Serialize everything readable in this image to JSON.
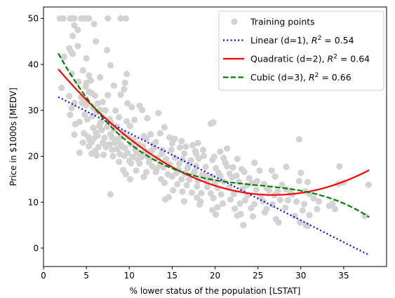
{
  "chart_data": {
    "type": "scatter",
    "title": "",
    "xlabel": "% lower status of the population [LSTAT]",
    "ylabel": "Price in $1000s [MEDV]",
    "xlim": [
      0,
      40
    ],
    "ylim": [
      -4,
      52.5
    ],
    "xticks": [
      0,
      5,
      10,
      15,
      20,
      25,
      30,
      35
    ],
    "yticks": [
      0,
      10,
      20,
      30,
      40,
      50
    ],
    "grid": false,
    "legend_position": "top-right",
    "scatter": {
      "name": "Training points",
      "color": "#d3d3d3",
      "points": [
        [
          1.9,
          50
        ],
        [
          2.3,
          50
        ],
        [
          3.1,
          50
        ],
        [
          3.3,
          50
        ],
        [
          3.6,
          50
        ],
        [
          4.4,
          50
        ],
        [
          4.7,
          50
        ],
        [
          5.1,
          50
        ],
        [
          5.3,
          50
        ],
        [
          9.0,
          50
        ],
        [
          9.6,
          50
        ],
        [
          7.5,
          50
        ],
        [
          5.9,
          48.8
        ],
        [
          3.6,
          48.5
        ],
        [
          4.0,
          47.5
        ],
        [
          3.4,
          46.2
        ],
        [
          6.1,
          45.0
        ],
        [
          4.0,
          44.0
        ],
        [
          3.0,
          43.5
        ],
        [
          3.2,
          42.8
        ],
        [
          3.4,
          42.3
        ],
        [
          7.4,
          43.1
        ],
        [
          2.4,
          41.7
        ],
        [
          5.0,
          41.3
        ],
        [
          4.6,
          38.7
        ],
        [
          7.8,
          39.8
        ],
        [
          3.3,
          38.0
        ],
        [
          5.3,
          37.6
        ],
        [
          6.6,
          37.2
        ],
        [
          5.5,
          36.5
        ],
        [
          2.1,
          34.9
        ],
        [
          4.1,
          36.2
        ],
        [
          5.0,
          36.0
        ],
        [
          9.7,
          37.9
        ],
        [
          4.9,
          35.2
        ],
        [
          8.2,
          35.4
        ],
        [
          9.0,
          33.4
        ],
        [
          9.4,
          34.6
        ],
        [
          5.3,
          34.0
        ],
        [
          5.6,
          33.8
        ],
        [
          9.5,
          36.0
        ],
        [
          6.0,
          33.2
        ],
        [
          3.0,
          33.1
        ],
        [
          4.4,
          32.9
        ],
        [
          7.5,
          33.3
        ],
        [
          3.6,
          31.6
        ],
        [
          4.5,
          31.6
        ],
        [
          9.8,
          31.5
        ],
        [
          5.0,
          31.1
        ],
        [
          6.3,
          31.5
        ],
        [
          3.3,
          30.5
        ],
        [
          6.6,
          30.1
        ],
        [
          10.3,
          30.7
        ],
        [
          11.5,
          30.1
        ],
        [
          7.2,
          30.0
        ],
        [
          11.2,
          31.0
        ],
        [
          3.1,
          29.0
        ],
        [
          4.8,
          29.1
        ],
        [
          6.2,
          29.6
        ],
        [
          5.7,
          28.7
        ],
        [
          8.8,
          28.5
        ],
        [
          7.7,
          28.1
        ],
        [
          5.1,
          28.0
        ],
        [
          6.7,
          27.5
        ],
        [
          4.2,
          27.5
        ],
        [
          9.7,
          27.6
        ],
        [
          3.7,
          27.0
        ],
        [
          13.4,
          29.4
        ],
        [
          12.1,
          28.3
        ],
        [
          6.5,
          26.6
        ],
        [
          7.4,
          26.4
        ],
        [
          5.8,
          26.2
        ],
        [
          8.2,
          25.9
        ],
        [
          10.1,
          26.6
        ],
        [
          14.1,
          26.3
        ],
        [
          6.1,
          25.2
        ],
        [
          4.7,
          25.0
        ],
        [
          9.3,
          25.0
        ],
        [
          7.8,
          24.8
        ],
        [
          11.7,
          24.4
        ],
        [
          14.7,
          24.1
        ],
        [
          19.8,
          27.4
        ],
        [
          19.5,
          27.1
        ],
        [
          3.6,
          24.7
        ],
        [
          5.2,
          24.3
        ],
        [
          6.3,
          24.5
        ],
        [
          7.1,
          24.0
        ],
        [
          8.0,
          24.1
        ],
        [
          8.9,
          24.0
        ],
        [
          9.9,
          24.2
        ],
        [
          10.5,
          23.6
        ],
        [
          12.0,
          23.9
        ],
        [
          16.1,
          23.3
        ],
        [
          13.1,
          23.1
        ],
        [
          4.6,
          23.0
        ],
        [
          5.6,
          23.1
        ],
        [
          6.9,
          23.0
        ],
        [
          7.7,
          22.6
        ],
        [
          8.3,
          22.9
        ],
        [
          9.0,
          22.6
        ],
        [
          10.2,
          22.7
        ],
        [
          11.1,
          22.6
        ],
        [
          12.8,
          22.5
        ],
        [
          15.0,
          22.8
        ],
        [
          18.0,
          22.9
        ],
        [
          15.9,
          21.9
        ],
        [
          17.4,
          22.4
        ],
        [
          21.4,
          21.7
        ],
        [
          29.8,
          23.7
        ],
        [
          5.3,
          22.2
        ],
        [
          6.4,
          22.0
        ],
        [
          7.3,
          22.0
        ],
        [
          8.6,
          21.6
        ],
        [
          9.5,
          21.8
        ],
        [
          10.7,
          21.5
        ],
        [
          11.9,
          21.1
        ],
        [
          12.6,
          21.2
        ],
        [
          13.8,
          20.6
        ],
        [
          14.9,
          21.4
        ],
        [
          16.4,
          20.6
        ],
        [
          17.8,
          20.5
        ],
        [
          18.6,
          21.4
        ],
        [
          20.6,
          21.0
        ],
        [
          4.2,
          20.8
        ],
        [
          5.6,
          20.6
        ],
        [
          6.2,
          20.2
        ],
        [
          7.0,
          20.3
        ],
        [
          8.1,
          20.0
        ],
        [
          9.4,
          20.1
        ],
        [
          10.4,
          19.9
        ],
        [
          11.4,
          19.8
        ],
        [
          12.4,
          19.5
        ],
        [
          13.3,
          19.6
        ],
        [
          14.3,
          19.4
        ],
        [
          15.3,
          19.7
        ],
        [
          16.2,
          19.3
        ],
        [
          17.2,
          19.1
        ],
        [
          18.1,
          19.5
        ],
        [
          19.7,
          19.2
        ],
        [
          21.0,
          19.6
        ],
        [
          22.6,
          19.4
        ],
        [
          24.6,
          18.6
        ],
        [
          8.8,
          18.8
        ],
        [
          10.2,
          18.5
        ],
        [
          11.2,
          18.4
        ],
        [
          12.3,
          18.7
        ],
        [
          13.6,
          18.2
        ],
        [
          14.7,
          18.3
        ],
        [
          15.8,
          18.4
        ],
        [
          16.9,
          18.1
        ],
        [
          17.8,
          17.9
        ],
        [
          18.9,
          17.7
        ],
        [
          20.1,
          17.4
        ],
        [
          21.4,
          17.8
        ],
        [
          23.1,
          17.2
        ],
        [
          25.2,
          16.9
        ],
        [
          28.3,
          17.7
        ],
        [
          30.0,
          16.4
        ],
        [
          34.5,
          17.8
        ],
        [
          26.6,
          16.9
        ],
        [
          9.3,
          17.0
        ],
        [
          10.8,
          16.9
        ],
        [
          12.0,
          16.6
        ],
        [
          13.1,
          16.6
        ],
        [
          14.5,
          16.1
        ],
        [
          15.5,
          16.4
        ],
        [
          16.5,
          16.2
        ],
        [
          17.5,
          16.2
        ],
        [
          18.5,
          16.0
        ],
        [
          19.6,
          15.6
        ],
        [
          20.6,
          15.7
        ],
        [
          22.0,
          15.4
        ],
        [
          24.0,
          15.2
        ],
        [
          27.0,
          15.6
        ],
        [
          9.6,
          16.1
        ],
        [
          11.7,
          15.5
        ],
        [
          13.7,
          15.0
        ],
        [
          15.0,
          15.6
        ],
        [
          16.1,
          15.0
        ],
        [
          17.0,
          14.9
        ],
        [
          18.0,
          14.7
        ],
        [
          19.0,
          14.6
        ],
        [
          20.0,
          14.3
        ],
        [
          21.0,
          14.5
        ],
        [
          22.8,
          14.4
        ],
        [
          24.3,
          14.1
        ],
        [
          25.7,
          14.0
        ],
        [
          27.8,
          13.8
        ],
        [
          29.8,
          14.6
        ],
        [
          30.8,
          14.4
        ],
        [
          34.4,
          14.0
        ],
        [
          35.0,
          14.3
        ],
        [
          37.9,
          13.8
        ],
        [
          14.1,
          14.2
        ],
        [
          15.6,
          13.9
        ],
        [
          16.7,
          13.7
        ],
        [
          17.9,
          13.4
        ],
        [
          19.1,
          13.3
        ],
        [
          20.3,
          13.1
        ],
        [
          21.6,
          13.2
        ],
        [
          23.2,
          12.9
        ],
        [
          24.8,
          12.7
        ],
        [
          26.3,
          12.6
        ],
        [
          28.3,
          12.8
        ],
        [
          30.5,
          12.4
        ],
        [
          10.1,
          15.0
        ],
        [
          15.1,
          12.6
        ],
        [
          16.2,
          12.3
        ],
        [
          17.3,
          12.1
        ],
        [
          18.4,
          12.0
        ],
        [
          19.5,
          11.9
        ],
        [
          20.7,
          11.7
        ],
        [
          22.2,
          11.8
        ],
        [
          23.8,
          11.5
        ],
        [
          25.3,
          11.2
        ],
        [
          26.9,
          11.5
        ],
        [
          29.0,
          11.7
        ],
        [
          31.0,
          11.8
        ],
        [
          14.6,
          11.1
        ],
        [
          17.9,
          11.0
        ],
        [
          19.8,
          10.9
        ],
        [
          21.8,
          10.6
        ],
        [
          23.5,
          10.4
        ],
        [
          25.6,
          10.2
        ],
        [
          27.6,
          10.5
        ],
        [
          29.5,
          10.1
        ],
        [
          32.1,
          10.2
        ],
        [
          14.2,
          10.6
        ],
        [
          16.4,
          10.2
        ],
        [
          18.3,
          10.1
        ],
        [
          20.9,
          9.7
        ],
        [
          22.9,
          9.7
        ],
        [
          24.6,
          9.6
        ],
        [
          26.7,
          9.5
        ],
        [
          28.5,
          10.4
        ],
        [
          30.4,
          9.6
        ],
        [
          33.3,
          9.2
        ],
        [
          7.8,
          11.7
        ],
        [
          18.2,
          9.5
        ],
        [
          20.3,
          8.9
        ],
        [
          22.3,
          8.6
        ],
        [
          24.2,
          8.7
        ],
        [
          26.0,
          8.5
        ],
        [
          28.2,
          8.8
        ],
        [
          30.2,
          8.2
        ],
        [
          31.9,
          8.5
        ],
        [
          34.0,
          8.5
        ],
        [
          19.7,
          8.3
        ],
        [
          23.0,
          7.4
        ],
        [
          25.8,
          7.8
        ],
        [
          29.3,
          7.0
        ],
        [
          31.0,
          7.2
        ],
        [
          37.5,
          7.0
        ],
        [
          20.1,
          7.3
        ],
        [
          22.6,
          7.1
        ],
        [
          24.4,
          6.9
        ],
        [
          27.1,
          6.3
        ],
        [
          29.9,
          5.6
        ],
        [
          30.6,
          5.0
        ],
        [
          23.3,
          5.0
        ],
        [
          27.4,
          5.6
        ],
        [
          30.8,
          4.8
        ],
        [
          10.5,
          23.1
        ],
        [
          11.6,
          22.2
        ],
        [
          12.9,
          21.8
        ],
        [
          13.9,
          21.3
        ],
        [
          8.5,
          23.6
        ],
        [
          9.2,
          22.1
        ],
        [
          10.9,
          20.8
        ],
        [
          6.0,
          21.1
        ],
        [
          5.4,
          23.5
        ],
        [
          6.8,
          25.7
        ],
        [
          8.6,
          26.5
        ],
        [
          7.9,
          27.3
        ],
        [
          10.0,
          19.0
        ],
        [
          11.0,
          19.3
        ],
        [
          12.7,
          17.8
        ],
        [
          13.2,
          17.3
        ],
        [
          14.0,
          17.6
        ],
        [
          15.7,
          17.1
        ],
        [
          16.8,
          17.4
        ],
        [
          17.6,
          16.7
        ],
        [
          18.8,
          15.8
        ],
        [
          19.3,
          15.2
        ],
        [
          20.4,
          16.4
        ],
        [
          21.7,
          16.2
        ],
        [
          22.5,
          15.8
        ],
        [
          23.7,
          13.7
        ],
        [
          24.9,
          14.6
        ],
        [
          26.0,
          13.1
        ],
        [
          27.3,
          12.3
        ],
        [
          28.8,
          12.0
        ],
        [
          31.5,
          10.8
        ],
        [
          33.7,
          9.7
        ],
        [
          5.9,
          23.9
        ],
        [
          7.2,
          22.5
        ],
        [
          8.0,
          21.4
        ],
        [
          8.9,
          20.5
        ],
        [
          9.8,
          20.7
        ],
        [
          11.3,
          20.3
        ],
        [
          12.1,
          20.0
        ],
        [
          6.6,
          27.0
        ],
        [
          5.8,
          30.5
        ],
        [
          4.9,
          32.4
        ],
        [
          6.9,
          31.8
        ],
        [
          8.4,
          29.9
        ],
        [
          10.6,
          27.9
        ],
        [
          12.5,
          24.8
        ],
        [
          13.6,
          25.0
        ],
        [
          15.3,
          23.8
        ],
        [
          16.6,
          22.1
        ],
        [
          17.7,
          21.1
        ],
        [
          18.7,
          20.1
        ],
        [
          19.9,
          19.9
        ],
        [
          21.2,
          18.6
        ],
        [
          22.1,
          17.6
        ],
        [
          23.4,
          16.6
        ]
      ]
    },
    "series": [
      {
        "name": "Linear (d=1), R^2 = 0.54",
        "degree": 1,
        "color": "#0000ff",
        "style": "dotted",
        "x_range": [
          1.73,
          37.97
        ],
        "coefficients": [
          34.55,
          -0.95
        ]
      },
      {
        "name": "Quadratic (d=2), R^2 = 0.64",
        "degree": 2,
        "color": "#ff0000",
        "style": "solid",
        "x_range": [
          1.73,
          37.97
        ],
        "coefficients": [
          42.86,
          -2.333,
          0.0435
        ]
      },
      {
        "name": "Cubic (d=3), R^2 = 0.66",
        "degree": 3,
        "color": "#008000",
        "style": "dashed",
        "x_range": [
          1.73,
          37.97
        ],
        "coefficients": [
          48.65,
          -3.866,
          0.1487,
          -0.002
        ]
      }
    ],
    "legend": [
      {
        "label": "Training points",
        "kind": "marker",
        "color": "#d3d3d3"
      },
      {
        "label_prefix": "Linear (d=1), ",
        "r2": "0.54",
        "kind": "line",
        "color": "#0000ff",
        "style": "dotted"
      },
      {
        "label_prefix": "Quadratic (d=2), ",
        "r2": "0.64",
        "kind": "line",
        "color": "#ff0000",
        "style": "solid"
      },
      {
        "label_prefix": "Cubic (d=3), ",
        "r2": "0.66",
        "kind": "line",
        "color": "#008000",
        "style": "dashed"
      }
    ],
    "r2_symbol": "R",
    "r2_exponent": "2",
    "r2_equals": " = "
  }
}
